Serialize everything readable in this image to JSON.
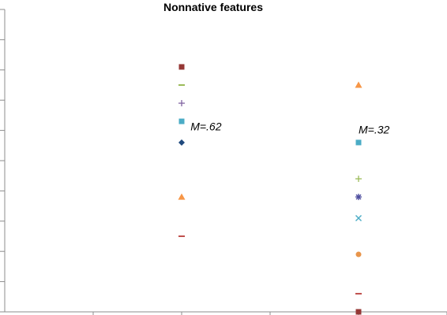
{
  "chart_data": {
    "type": "scatter",
    "title": "Nonnative features",
    "xlabel": "",
    "ylabel": "",
    "xlim": [
      0,
      5
    ],
    "ylim": [
      0,
      1
    ],
    "grid": false,
    "legend": "none",
    "annotations": [
      {
        "text": "M=.62",
        "x": 2.1,
        "y": 0.6
      },
      {
        "text": "M=.32",
        "x": 4.0,
        "y": 0.59
      }
    ],
    "series": [
      {
        "marker": "square",
        "color": "#953735",
        "points": [
          [
            2,
            0.81
          ],
          [
            4,
            0.0
          ]
        ]
      },
      {
        "marker": "dash",
        "color": "#9bbb59",
        "points": [
          [
            2,
            0.75
          ]
        ]
      },
      {
        "marker": "plus",
        "color": "#8064a2",
        "points": [
          [
            2,
            0.69
          ]
        ]
      },
      {
        "marker": "square",
        "color": "#4bacc6",
        "points": [
          [
            2,
            0.63
          ],
          [
            4,
            0.56
          ]
        ]
      },
      {
        "marker": "diamond",
        "color": "#1f497d",
        "points": [
          [
            2,
            0.56
          ]
        ]
      },
      {
        "marker": "triangle",
        "color": "#f79646",
        "points": [
          [
            2,
            0.38
          ],
          [
            4,
            0.75
          ]
        ]
      },
      {
        "marker": "dash",
        "color": "#c0504d",
        "points": [
          [
            2,
            0.25
          ],
          [
            4,
            0.06
          ]
        ]
      },
      {
        "marker": "plus",
        "color": "#9bbb59",
        "points": [
          [
            4,
            0.44
          ]
        ]
      },
      {
        "marker": "star",
        "color": "#4f4f9f",
        "points": [
          [
            4,
            0.38
          ]
        ]
      },
      {
        "marker": "x",
        "color": "#4bacc6",
        "points": [
          [
            4,
            0.31
          ]
        ]
      },
      {
        "marker": "circle",
        "color": "#e8954b",
        "points": [
          [
            4,
            0.19
          ]
        ]
      }
    ]
  }
}
